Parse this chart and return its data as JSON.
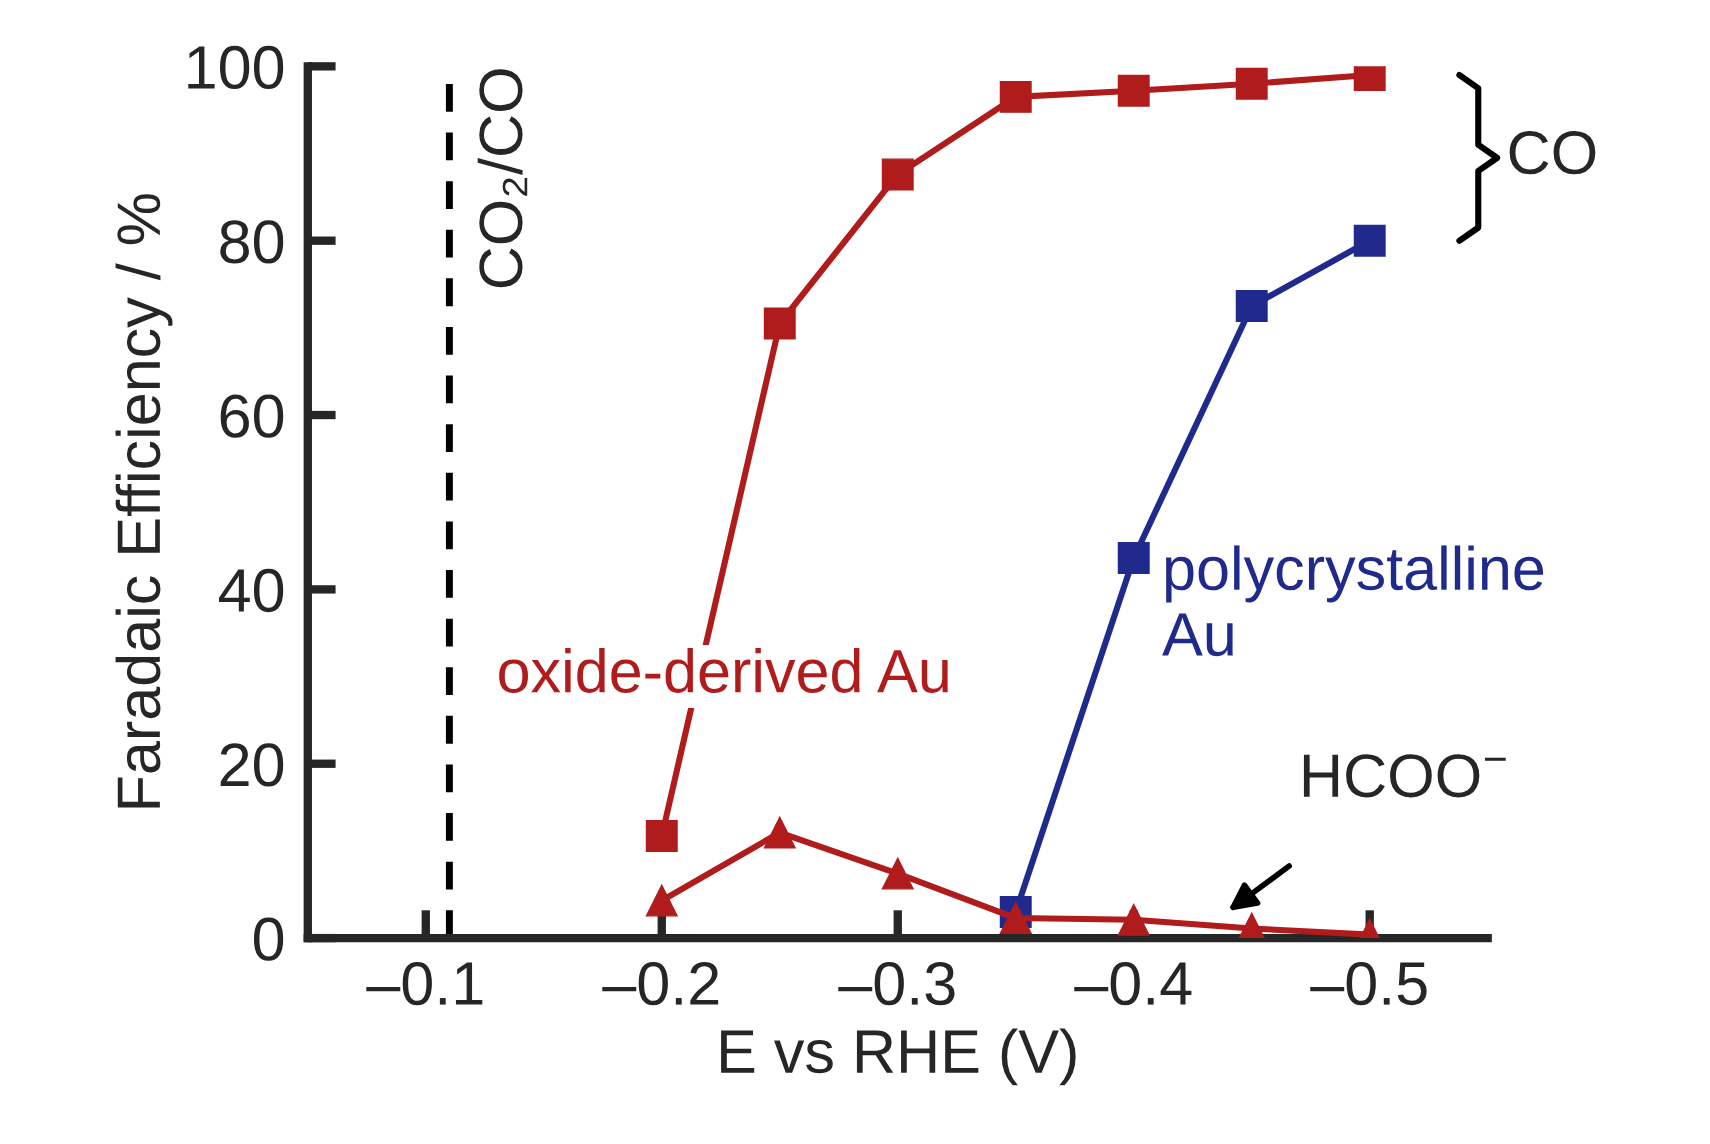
{
  "chart_data": {
    "type": "line",
    "xlabel": "E vs RHE (V)",
    "ylabel": "Faradaic Efficiency / %",
    "x": [
      -0.2,
      -0.25,
      -0.3,
      -0.35,
      -0.4,
      -0.45,
      -0.5
    ],
    "series": [
      {
        "name": "oxide-derived Au",
        "color": "#b01c1c",
        "marker": "square",
        "values": [
          11.7,
          70.5,
          87.6,
          96.5,
          97.2,
          98,
          99
        ]
      },
      {
        "color": "#b01c1c",
        "marker": "triangle",
        "values": [
          4.3,
          12.1,
          7.4,
          2.3,
          2.1,
          1.1,
          0.4
        ]
      },
      {
        "name": "polycrystalline Au",
        "color": "#1f2a8c",
        "marker": "square",
        "x": [
          -0.35,
          -0.4,
          -0.45,
          -0.5
        ],
        "values": [
          3,
          43.6,
          72.5,
          80
        ]
      }
    ],
    "xlim": [
      -0.05,
      -0.55
    ],
    "ylim": [
      0,
      100
    ],
    "xticks": [
      {
        "value": -0.1,
        "label": "–0.1"
      },
      {
        "value": -0.2,
        "label": "–0.2"
      },
      {
        "value": -0.3,
        "label": "–0.3"
      },
      {
        "value": -0.4,
        "label": "–0.4"
      },
      {
        "value": -0.5,
        "label": "–0.5"
      }
    ],
    "yticks": [
      0,
      20,
      40,
      60,
      80,
      100
    ],
    "ref_lines": [
      {
        "axis": "x",
        "value": -0.11,
        "label": "CO₂/CO",
        "color": "#000000",
        "line_style": "dashed"
      }
    ],
    "annotations": [
      "CO",
      {
        "text": "HCOO$^{−}$",
        "x": -0.45,
        "y": 1.1
      }
    ],
    "grid": false,
    "legend": false,
    "line_style": "solid"
  }
}
